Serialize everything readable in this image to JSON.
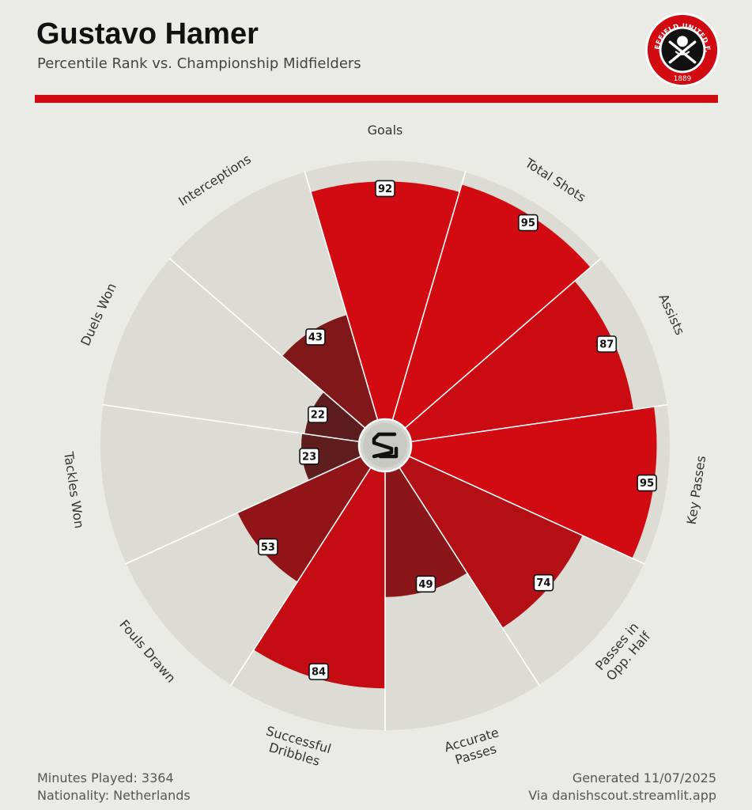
{
  "header": {
    "title": "Gustavo Hamer",
    "subtitle": "Percentile Rank vs. Championship Midfielders"
  },
  "logo": {
    "top_text": "SHEFFIELD UNITED F.C.",
    "year": "1889",
    "icon": "sheffield-united-crest-icon"
  },
  "colors": {
    "accent": "#d20a11",
    "background": "#ebebe6",
    "track": "#dcdcd5"
  },
  "chart_data": {
    "type": "radar-bar",
    "scale_max": 100,
    "categories": [
      {
        "label": "Goals",
        "value": 92
      },
      {
        "label": "Total Shots",
        "value": 95
      },
      {
        "label": "Assists",
        "value": 87
      },
      {
        "label": "Key Passes",
        "value": 95
      },
      {
        "label": "Passes in\nOpp. Half",
        "value": 74
      },
      {
        "label": "Accurate\nPasses",
        "value": 49
      },
      {
        "label": "Successful\nDribbles",
        "value": 84
      },
      {
        "label": "Fouls Drawn",
        "value": 53
      },
      {
        "label": "Tackles Won",
        "value": 23
      },
      {
        "label": "Duels Won",
        "value": 22
      },
      {
        "label": "Interceptions",
        "value": 43
      }
    ]
  },
  "footer": {
    "minutes": "Minutes Played: 3364",
    "nationality": "Nationality: Netherlands",
    "generated": "Generated 11/07/2025",
    "source": "Via danishscout.streamlit.app"
  }
}
